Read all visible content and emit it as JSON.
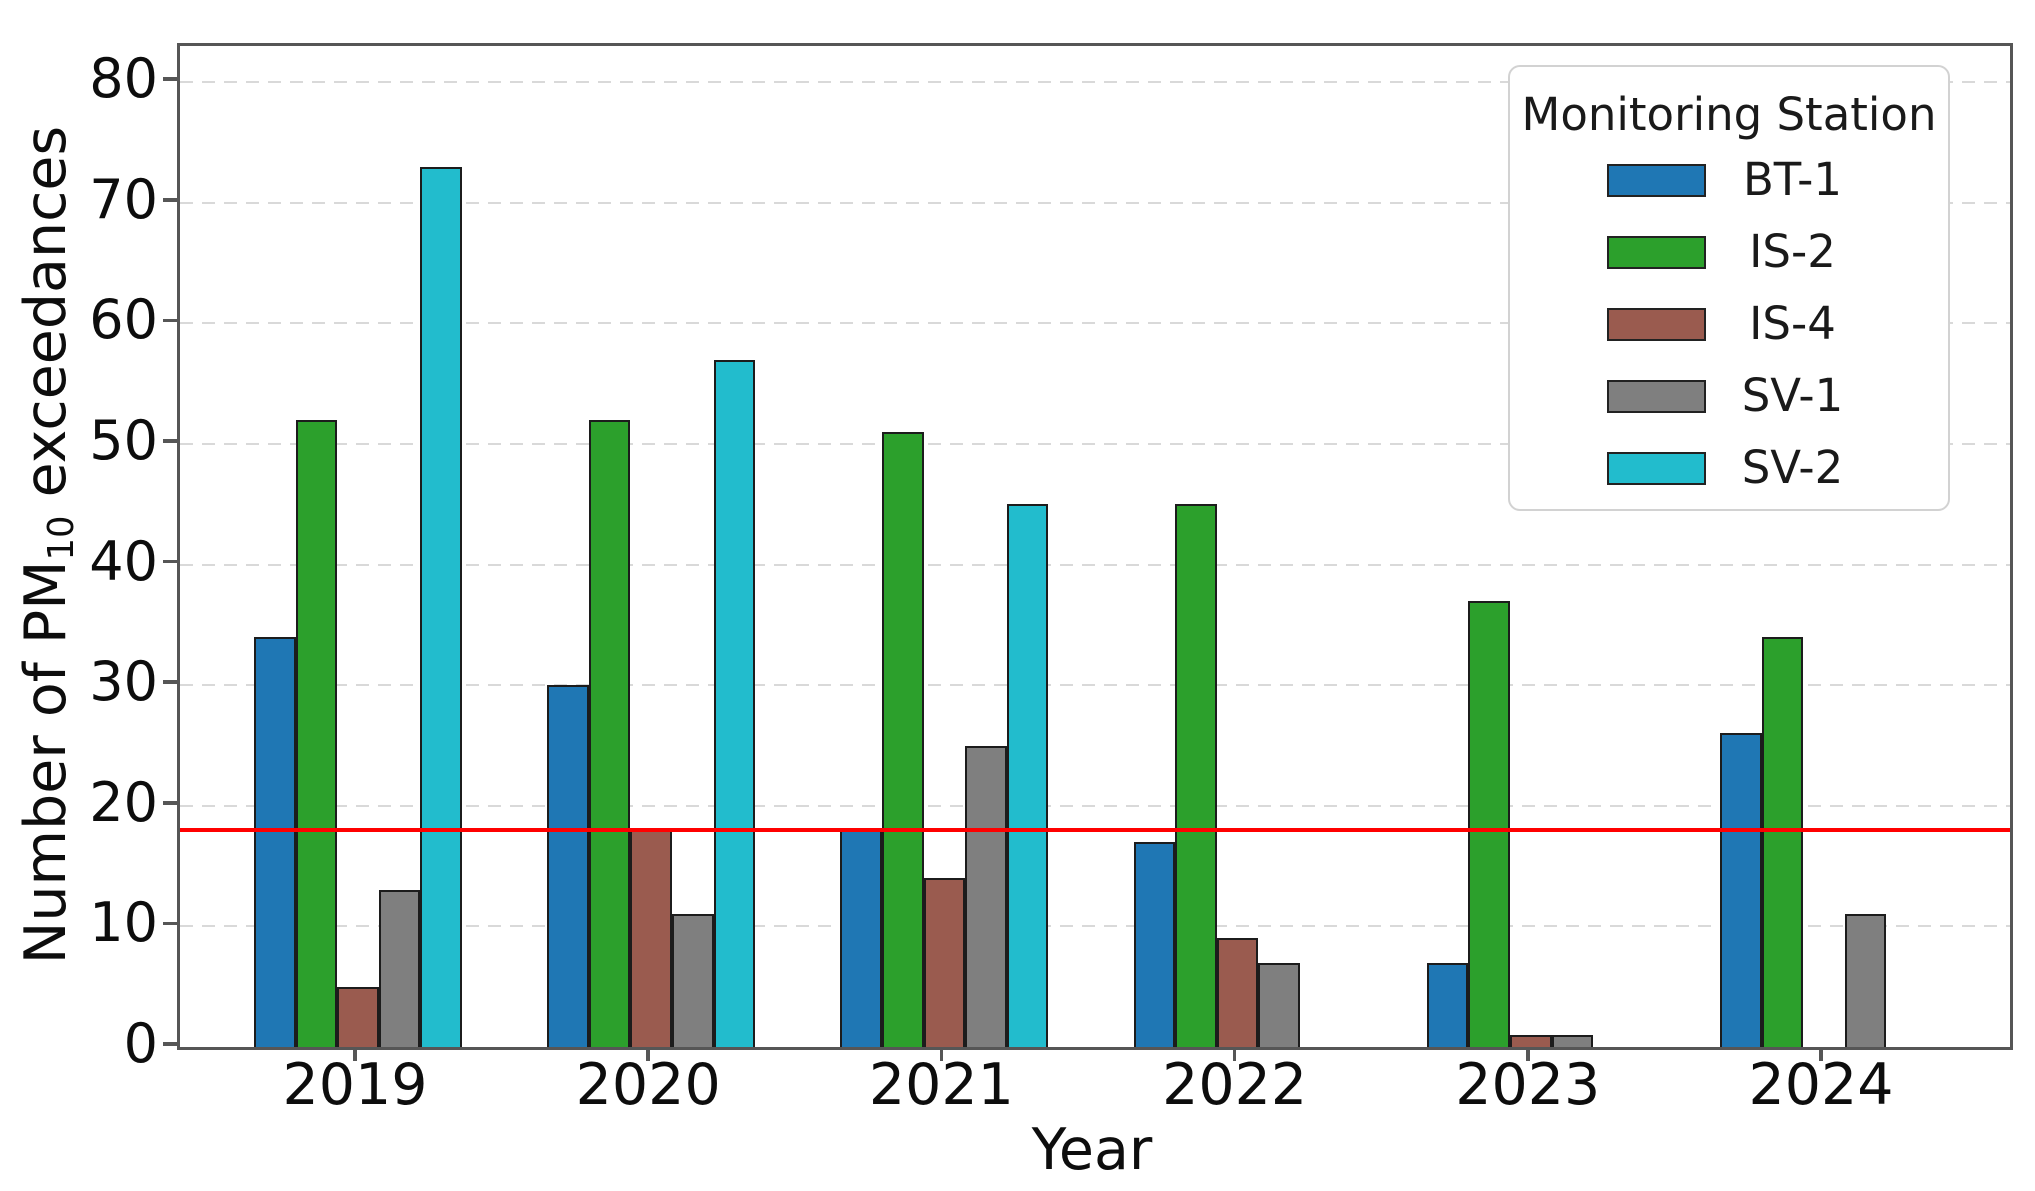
{
  "axes": {
    "ylabel_prefix": "Number of PM",
    "ylabel_sub": "10",
    "ylabel_suffix": " exceedances",
    "xlabel": "Year"
  },
  "legend": {
    "title": "Monitoring Station"
  },
  "chart_data": {
    "type": "bar",
    "title": "",
    "xlabel": "Year",
    "ylabel": "Number of PM10 exceedances",
    "categories": [
      "2019",
      "2020",
      "2021",
      "2022",
      "2023",
      "2024"
    ],
    "series": [
      {
        "name": "BT-1",
        "color": "#1f77b4",
        "values": [
          34,
          30,
          18,
          17,
          7,
          26
        ]
      },
      {
        "name": "IS-2",
        "color": "#2ca02c",
        "values": [
          52,
          52,
          51,
          45,
          37,
          34
        ]
      },
      {
        "name": "IS-4",
        "color": "#9a5b4f",
        "values": [
          5,
          18,
          14,
          9,
          1,
          0
        ]
      },
      {
        "name": "SV-1",
        "color": "#7f7f7f",
        "values": [
          13,
          11,
          25,
          7,
          1,
          11
        ]
      },
      {
        "name": "SV-2",
        "color": "#22bccd",
        "values": [
          73,
          57,
          45,
          0,
          0,
          0
        ]
      }
    ],
    "y_ticks": [
      0,
      10,
      20,
      30,
      40,
      50,
      60,
      70,
      80
    ],
    "ylim": [
      0,
      83
    ],
    "grid": true,
    "grid_style": "horizontal dashed",
    "legend_position": "upper right",
    "bar_edge_color": "#1c1c1c",
    "threshold_line": {
      "value": 18,
      "color": "#ff0000"
    }
  }
}
